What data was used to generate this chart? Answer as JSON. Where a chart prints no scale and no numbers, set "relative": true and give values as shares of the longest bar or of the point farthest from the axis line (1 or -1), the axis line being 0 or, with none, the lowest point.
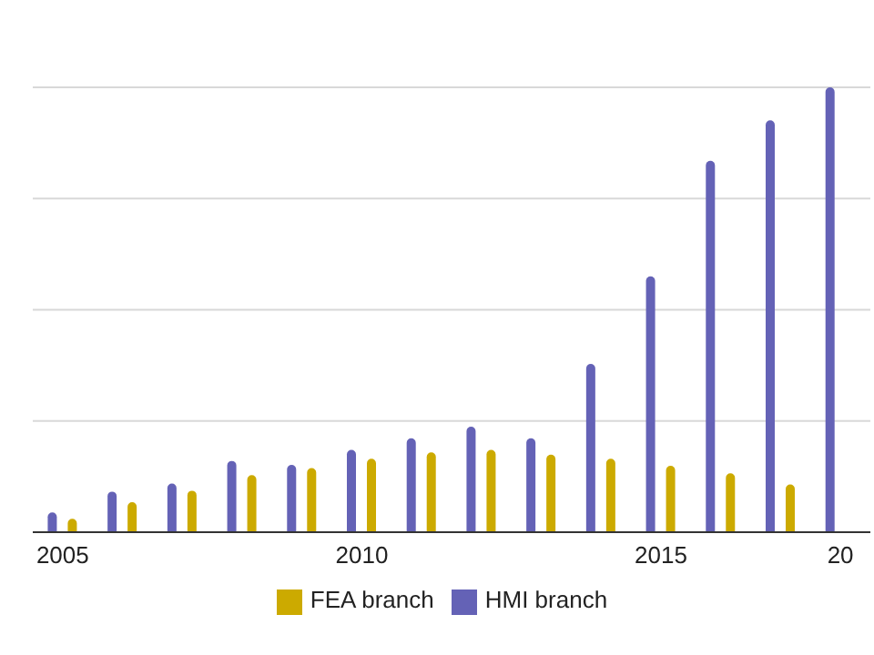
{
  "chart_data": {
    "type": "bar",
    "relative": true,
    "grid": "y",
    "legend": "bottom",
    "categories": [
      "2005",
      null,
      null,
      null,
      null,
      "2010",
      null,
      null,
      null,
      null,
      "2015",
      null,
      null,
      "20"
    ],
    "series": [
      {
        "name": "HMI branch",
        "color": "#6462b6",
        "values": [
          0.044,
          0.091,
          0.109,
          0.16,
          0.151,
          0.185,
          0.211,
          0.237,
          0.211,
          0.378,
          0.575,
          0.835,
          0.926,
          1
        ]
      },
      {
        "name": "FEA branch",
        "color": "#ccaa00",
        "values": [
          0.03,
          0.067,
          0.093,
          0.128,
          0.144,
          0.165,
          0.179,
          0.185,
          0.174,
          0.165,
          0.149,
          0.132,
          0.107,
          null
        ]
      }
    ]
  }
}
